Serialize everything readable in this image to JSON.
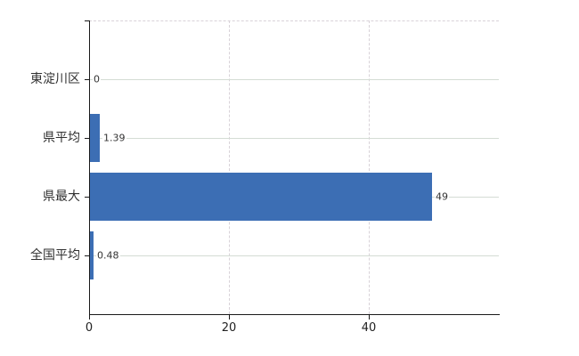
{
  "chart_data": {
    "type": "bar",
    "orientation": "horizontal",
    "title": "",
    "xlabel": "",
    "ylabel": "",
    "categories": [
      "東淀川区",
      "県平均",
      "県最大",
      "全国平均"
    ],
    "values": [
      0,
      1.39,
      49,
      0.48
    ],
    "value_labels": [
      "0",
      "1.39",
      "49",
      "0.48"
    ],
    "x_ticks": [
      0,
      20,
      40
    ],
    "x_tick_labels": [
      "0",
      "20",
      "40"
    ],
    "xlim": [
      0,
      58.5
    ],
    "grid": true,
    "legend": false,
    "colors": {
      "bar": "#3c6eb4",
      "h_gridline": "#d4dcd4",
      "v_gridline": "#d8d2d8",
      "axis": "#1a1a1a",
      "category_text": "#303030",
      "value_text": "#333333",
      "background": "#ffffff"
    }
  }
}
